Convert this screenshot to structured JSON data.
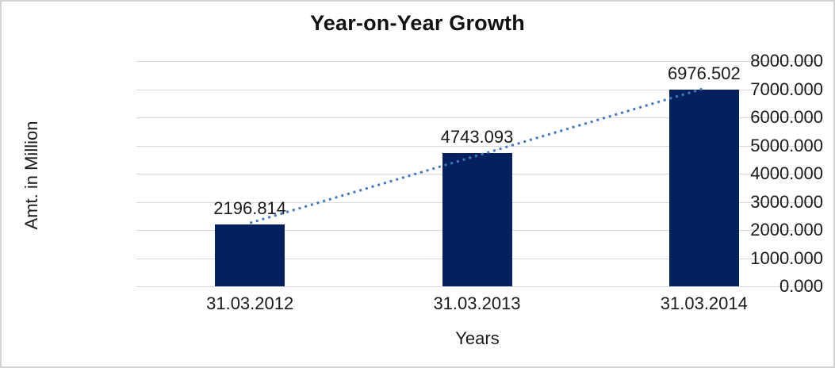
{
  "chart_data": {
    "type": "bar",
    "title": "Year-on-Year Growth",
    "categories": [
      "31.03.2012",
      "31.03.2013",
      "31.03.2014"
    ],
    "values": [
      2196.814,
      4743.093,
      6976.502
    ],
    "data_labels": [
      "2196.814",
      "4743.093",
      "6976.502"
    ],
    "xlabel": "Years",
    "ylabel": "Amt. in Million",
    "ylim": [
      0,
      8000
    ],
    "ytick_labels": [
      "0.000",
      "1000.000",
      "2000.000",
      "3000.000",
      "4000.000",
      "5000.000",
      "6000.000",
      "7000.000",
      "8000.000"
    ],
    "grid": true,
    "legend": "none",
    "trendline": {
      "type": "linear",
      "style": "dotted",
      "start_value": 2248.96,
      "end_value": 7028.65
    },
    "colors": {
      "bar": "#03215f",
      "gridline": "#d9d9d9",
      "trendline": "#4478be",
      "text": "#1a1a1a",
      "border": "#d3d3d3",
      "background": "#ffffff"
    }
  }
}
